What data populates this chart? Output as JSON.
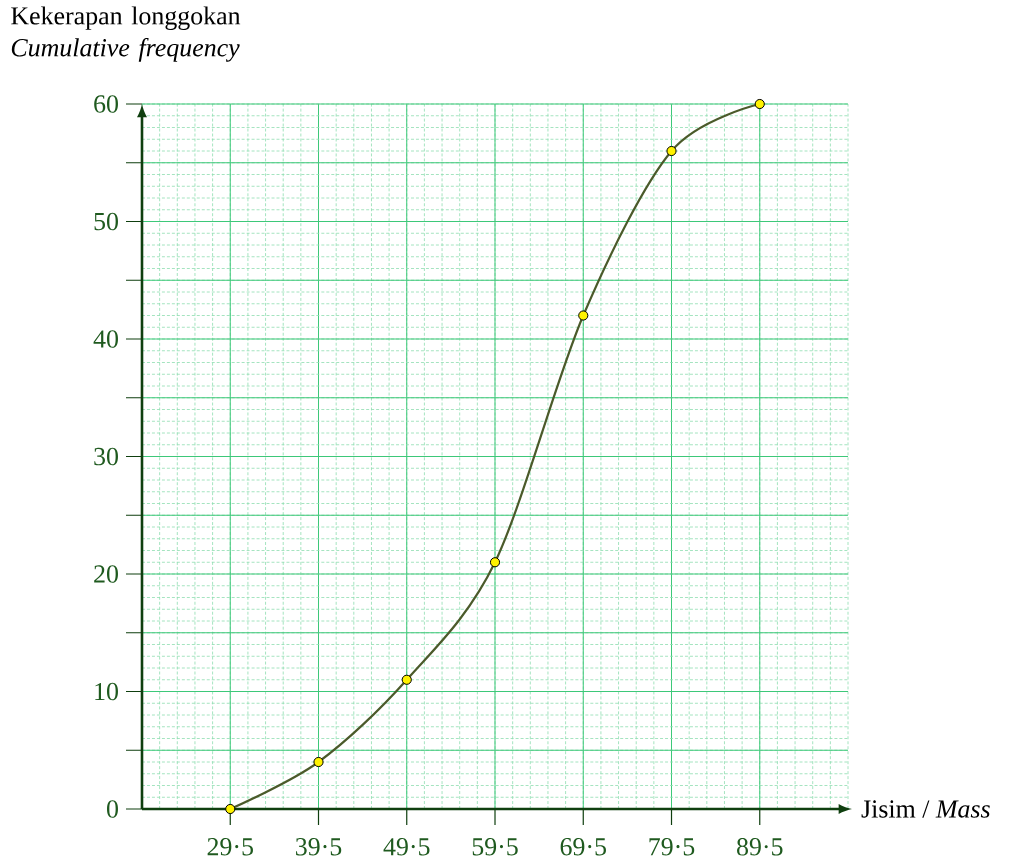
{
  "chart_data": {
    "type": "line",
    "xlabel": "Jisim / *Mass*",
    "ylabel": "Kekerapan longgokan *Cumulative frequency*",
    "categories": [
      "29·5",
      "39·5",
      "49·5",
      "59·5",
      "69·5",
      "79·5",
      "89·5"
    ],
    "series": [
      {
        "color": "#4b5a2a",
        "values": [
          0,
          4,
          11,
          21,
          42,
          56,
          60
        ]
      }
    ],
    "ylim": [
      0,
      60
    ],
    "yticks": [
      0,
      {
        "value": 5,
        "label": null
      },
      10,
      {
        "value": 15,
        "label": null
      },
      20,
      {
        "value": 25,
        "label": null
      },
      30,
      {
        "value": 35,
        "label": null
      },
      40,
      {
        "value": 45,
        "label": null
      },
      50,
      {
        "value": 55,
        "label": null
      },
      60
    ],
    "grid": true,
    "marker": "circle",
    "line_style": "solid"
  }
}
